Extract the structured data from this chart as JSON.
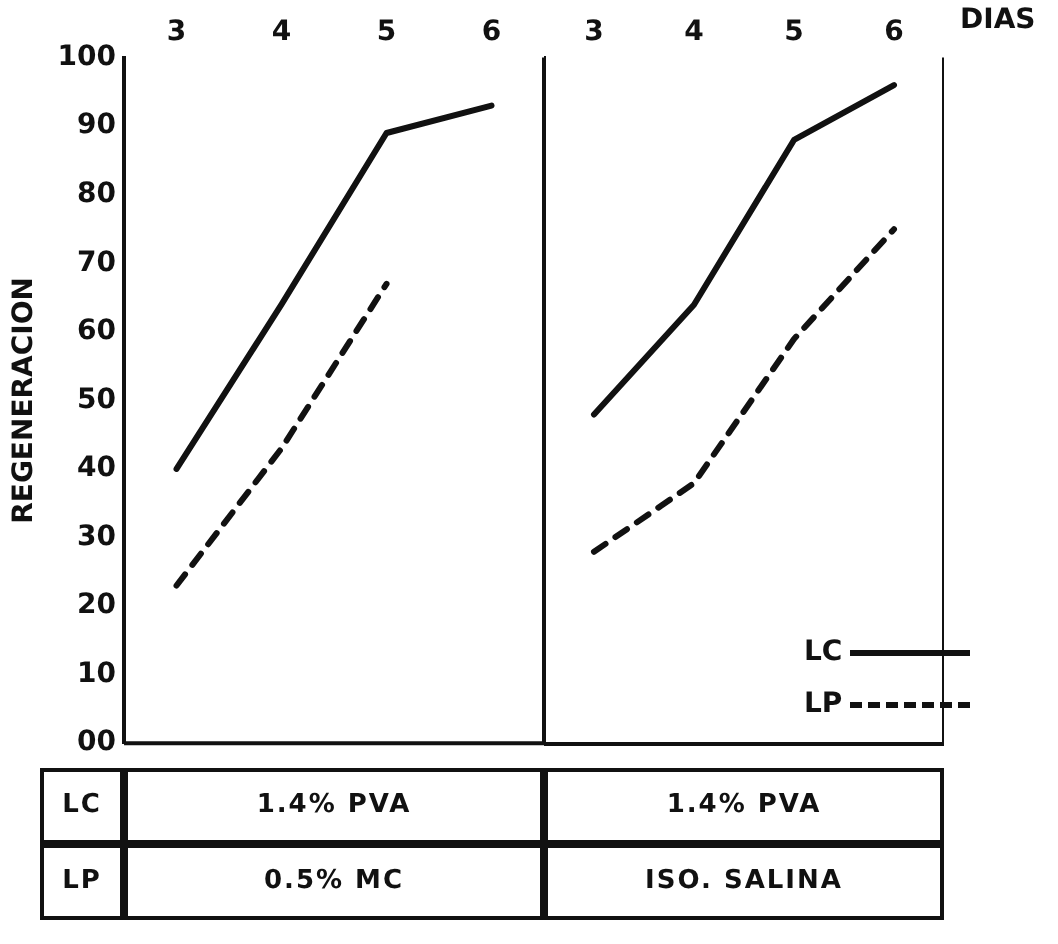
{
  "chart_data": [
    {
      "type": "line",
      "ylabel": "REGENERACION",
      "categories": [
        "3",
        "4",
        "5",
        "6"
      ],
      "series": [
        {
          "color": "#111111",
          "line_style": "solid",
          "values": [
            40,
            64,
            89,
            93
          ]
        },
        {
          "color": "#111111",
          "line_style": "dashed",
          "values": [
            23,
            43,
            67,
            null
          ]
        }
      ],
      "ylim": [
        0,
        100
      ],
      "yticks": [
        {
          "value": 0,
          "label": "00"
        },
        10,
        20,
        30,
        40,
        50,
        60,
        70,
        80,
        90,
        100
      ],
      "grid": false,
      "legend": false,
      "marker": "none",
      "annotations": [
        "LC",
        "1.4% PVA",
        "LP",
        "0.5% MC"
      ]
    },
    {
      "type": "line",
      "xlabel": "DIAS",
      "categories": [
        "3",
        "4",
        "5",
        "6"
      ],
      "series": [
        {
          "name": "LC",
          "color": "#111111",
          "line_style": "solid",
          "values": [
            48,
            64,
            88,
            96
          ]
        },
        {
          "name": "LP",
          "color": "#111111",
          "line_style": "dashed",
          "values": [
            28,
            38,
            59,
            75
          ]
        }
      ],
      "ylim": [
        0,
        100
      ],
      "yticks": [
        0,
        10,
        20,
        30,
        40,
        50,
        60,
        70,
        80,
        90,
        100
      ],
      "tick_labels": "x",
      "grid": false,
      "legend": "bottom right",
      "marker": "none",
      "annotations": [
        "1.4% PVA",
        "ISO. SALINA"
      ]
    }
  ]
}
